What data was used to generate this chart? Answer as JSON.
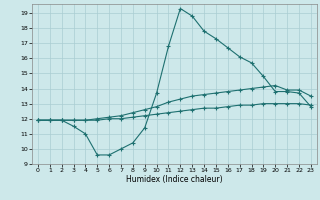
{
  "xlabel": "Humidex (Indice chaleur)",
  "background_color": "#cde8ea",
  "grid_color": "#aacdd2",
  "line_color": "#1e7070",
  "xlim": [
    -0.5,
    23.5
  ],
  "ylim": [
    9,
    19.6
  ],
  "yticks": [
    9,
    10,
    11,
    12,
    13,
    14,
    15,
    16,
    17,
    18,
    19
  ],
  "xticks": [
    0,
    1,
    2,
    3,
    4,
    5,
    6,
    7,
    8,
    9,
    10,
    11,
    12,
    13,
    14,
    15,
    16,
    17,
    18,
    19,
    20,
    21,
    22,
    23
  ],
  "curve1_x": [
    0,
    1,
    2,
    3,
    4,
    5,
    6,
    7,
    8,
    9,
    10,
    11,
    12,
    13,
    14,
    15,
    16,
    17,
    18,
    19,
    20,
    21,
    22,
    23
  ],
  "curve1_y": [
    11.9,
    11.9,
    11.9,
    11.5,
    11.0,
    9.6,
    9.6,
    10.0,
    10.4,
    11.4,
    13.7,
    16.8,
    19.3,
    18.8,
    17.8,
    17.3,
    16.7,
    16.1,
    15.7,
    14.8,
    13.8,
    13.8,
    13.7,
    12.8
  ],
  "curve2_x": [
    0,
    1,
    2,
    3,
    4,
    5,
    6,
    7,
    8,
    9,
    10,
    11,
    12,
    13,
    14,
    15,
    16,
    17,
    18,
    19,
    20,
    21,
    22,
    23
  ],
  "curve2_y": [
    11.9,
    11.9,
    11.9,
    11.9,
    11.9,
    12.0,
    12.1,
    12.2,
    12.4,
    12.6,
    12.8,
    13.1,
    13.3,
    13.5,
    13.6,
    13.7,
    13.8,
    13.9,
    14.0,
    14.1,
    14.2,
    13.9,
    13.9,
    13.5
  ],
  "curve3_x": [
    0,
    1,
    2,
    3,
    4,
    5,
    6,
    7,
    8,
    9,
    10,
    11,
    12,
    13,
    14,
    15,
    16,
    17,
    18,
    19,
    20,
    21,
    22,
    23
  ],
  "curve3_y": [
    11.9,
    11.9,
    11.9,
    11.9,
    11.9,
    11.9,
    12.0,
    12.0,
    12.1,
    12.2,
    12.3,
    12.4,
    12.5,
    12.6,
    12.7,
    12.7,
    12.8,
    12.9,
    12.9,
    13.0,
    13.0,
    13.0,
    13.0,
    12.9
  ]
}
